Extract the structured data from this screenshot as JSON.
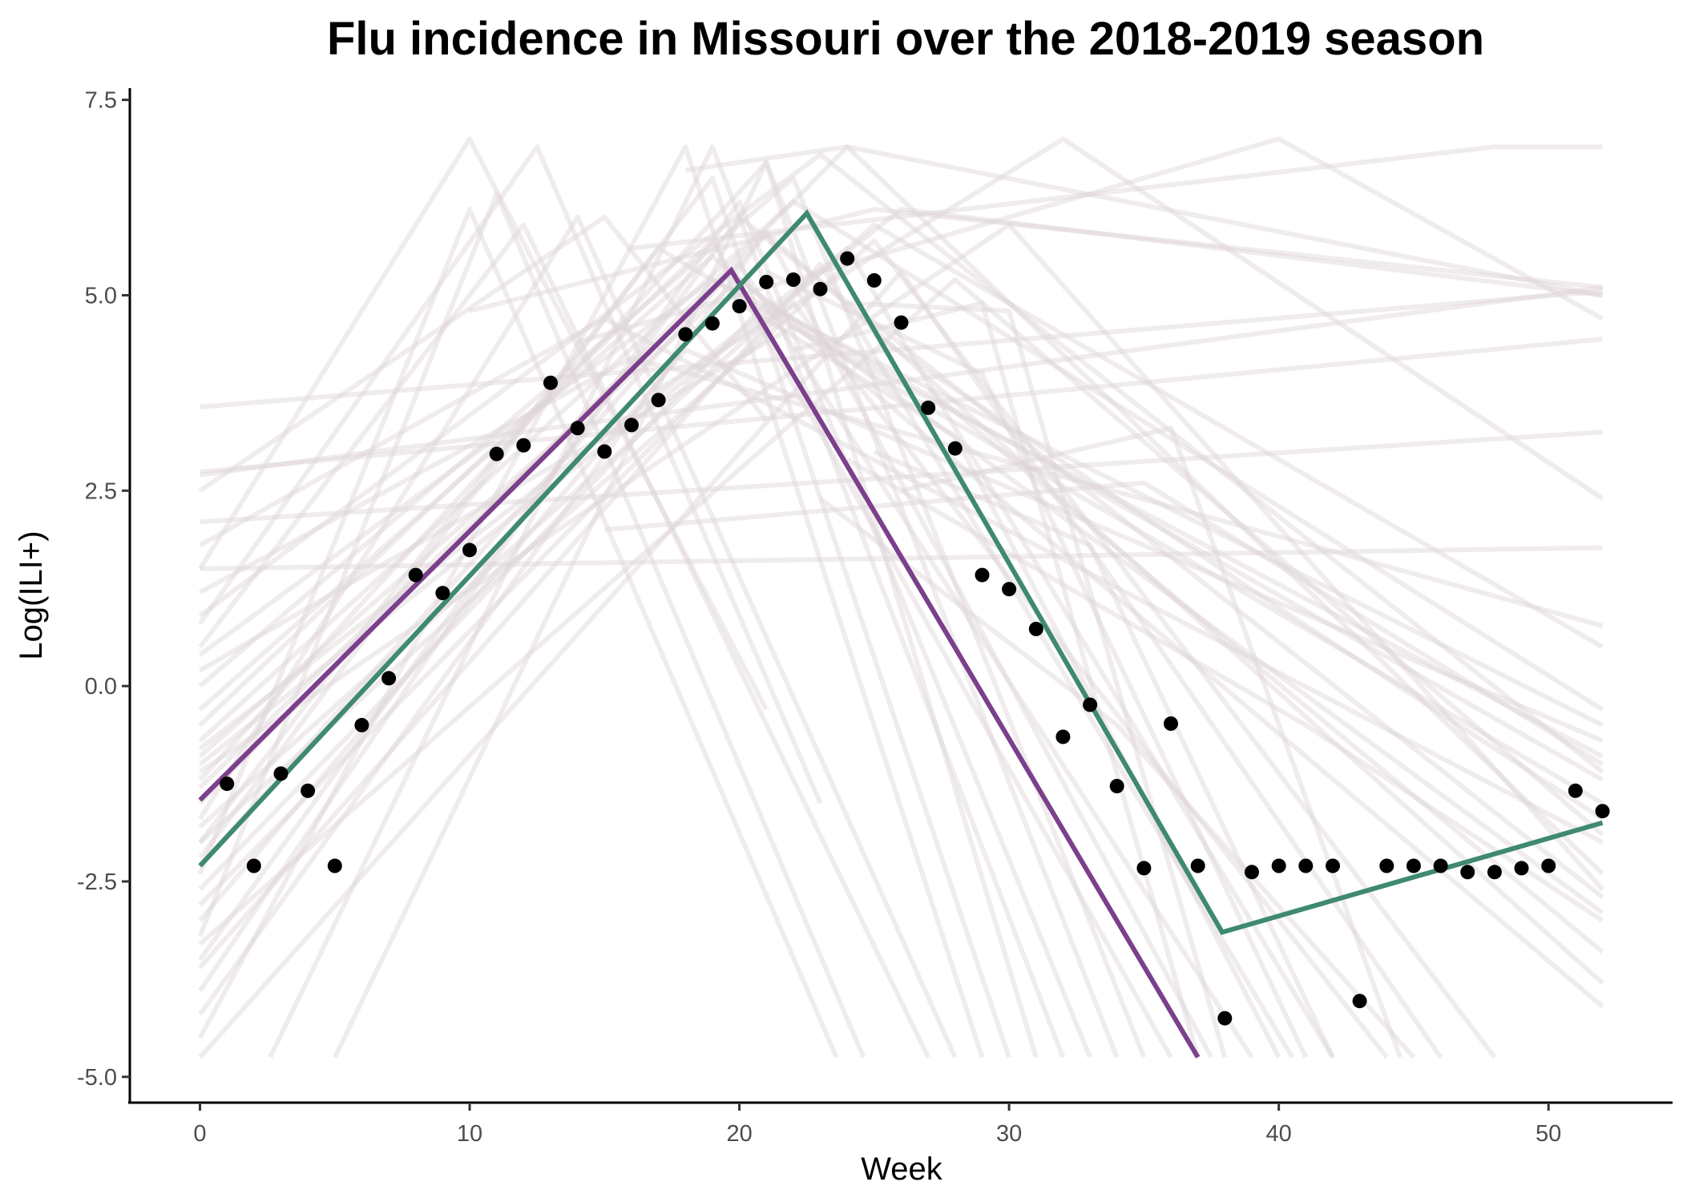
{
  "chart_data": {
    "type": "line",
    "title": "Flu incidence in Missouri over the 2018-2019 season",
    "xlabel": "Week",
    "ylabel": "Log(ILI+)",
    "xlim": [
      -2.6,
      54.6
    ],
    "ylim": [
      -5.33,
      7.65
    ],
    "x_ticks": [
      0,
      10,
      20,
      30,
      40,
      50
    ],
    "x_tick_labels": [
      "0",
      "10",
      "20",
      "30",
      "40",
      "50"
    ],
    "y_ticks": [
      -5.0,
      -2.5,
      0.0,
      2.5,
      5.0,
      7.5
    ],
    "y_tick_labels": [
      "-5.0",
      "-2.5",
      "0.0",
      "2.5",
      "5.0",
      "7.5"
    ],
    "grid": false,
    "legend": "none",
    "colors": {
      "points": "#000000",
      "purple_line": "#7b3f8c",
      "green_line": "#3f8a6e",
      "ensemble": "#ddd4d6"
    },
    "points": {
      "x": [
        1,
        2,
        3,
        4,
        5,
        6,
        7,
        8,
        9,
        10,
        11,
        12,
        13,
        14,
        15,
        16,
        17,
        18,
        19,
        20,
        21,
        22,
        23,
        24,
        25,
        26,
        27,
        28,
        29,
        30,
        31,
        32,
        33,
        34,
        35,
        36,
        37,
        38,
        39,
        40,
        41,
        42,
        43,
        44,
        45,
        46,
        47,
        48,
        49,
        50,
        51,
        52
      ],
      "y": [
        -1.25,
        -2.3,
        -1.12,
        -1.34,
        -2.3,
        -0.5,
        0.1,
        1.42,
        1.19,
        1.74,
        2.97,
        3.08,
        3.88,
        3.3,
        3.0,
        3.34,
        3.66,
        4.5,
        4.64,
        4.86,
        5.17,
        5.2,
        5.08,
        5.47,
        5.19,
        4.65,
        3.56,
        3.04,
        1.42,
        1.24,
        0.73,
        -0.65,
        -0.24,
        -1.28,
        -2.33,
        -0.48,
        -2.3,
        -4.25,
        -2.38,
        -2.3,
        -2.3,
        -2.3,
        -4.03,
        -2.3,
        -2.3,
        -2.3,
        -2.38,
        -2.38,
        -2.33,
        -2.3,
        -1.34,
        -1.6
      ]
    },
    "series": [
      {
        "x": [
          0,
          19.7,
          37
        ],
        "y": [
          -1.46,
          5.32,
          -4.75
        ]
      },
      {
        "x": [
          0,
          22.5,
          37.9,
          52
        ],
        "y": [
          -2.3,
          6.05,
          -3.15,
          -1.75
        ]
      }
    ],
    "ensemble": [
      {
        "x": [
          0,
          52
        ],
        "y": [
          3.57,
          5.05
        ]
      },
      {
        "x": [
          0,
          52
        ],
        "y": [
          2.7,
          5.1
        ]
      },
      {
        "x": [
          0,
          52
        ],
        "y": [
          2.74,
          4.44
        ]
      },
      {
        "x": [
          0,
          52
        ],
        "y": [
          2.1,
          3.25
        ]
      },
      {
        "x": [
          0,
          52
        ],
        "y": [
          1.5,
          1.77
        ]
      },
      {
        "x": [
          0,
          16,
          52
        ],
        "y": [
          1.2,
          4.2,
          0.77
        ]
      },
      {
        "x": [
          0,
          19,
          52
        ],
        "y": [
          0.4,
          5.2,
          -0.5
        ]
      },
      {
        "x": [
          0,
          22,
          52
        ],
        "y": [
          -0.7,
          6.2,
          -0.3
        ]
      },
      {
        "x": [
          0,
          17,
          52
        ],
        "y": [
          -2.2,
          5.6,
          -1.5
        ]
      },
      {
        "x": [
          0,
          20,
          52
        ],
        "y": [
          -3.5,
          6.0,
          -2.7
        ]
      },
      {
        "x": [
          0,
          21,
          52
        ],
        "y": [
          -4.2,
          5.8,
          -3.8
        ]
      },
      {
        "x": [
          0,
          18,
          52
        ],
        "y": [
          -3.0,
          4.3,
          -0.7
        ]
      },
      {
        "x": [
          0,
          23,
          52
        ],
        "y": [
          0.9,
          6.8,
          -1.1
        ]
      },
      {
        "x": [
          0,
          15,
          52
        ],
        "y": [
          1.8,
          4.7,
          -2.0
        ]
      },
      {
        "x": [
          0,
          24,
          52
        ],
        "y": [
          -1.5,
          6.9,
          -2.4
        ]
      },
      {
        "x": [
          0,
          19,
          52
        ],
        "y": [
          -0.3,
          5.5,
          -4.1
        ]
      },
      {
        "x": [
          0,
          26,
          52
        ],
        "y": [
          -1.0,
          6.1,
          5.0
        ]
      },
      {
        "x": [
          0,
          22,
          52
        ],
        "y": [
          0.2,
          4.6,
          -0.9
        ]
      },
      {
        "x": [
          0,
          21,
          52
        ],
        "y": [
          -2.6,
          4.9,
          -1.2
        ]
      },
      {
        "x": [
          0,
          25,
          52
        ],
        "y": [
          -1.8,
          5.9,
          0.5
        ]
      },
      {
        "x": [
          0,
          20,
          52
        ],
        "y": [
          -0.9,
          5.2,
          -2.9
        ]
      },
      {
        "x": [
          0,
          10,
          23.6
        ],
        "y": [
          -2.4,
          6.1,
          -4.75
        ]
      },
      {
        "x": [
          0,
          11,
          24.6
        ],
        "y": [
          -3.2,
          6.3,
          -4.75
        ]
      },
      {
        "x": [
          0,
          12,
          27
        ],
        "y": [
          0.5,
          5.9,
          -4.75
        ]
      },
      {
        "x": [
          0,
          14,
          28
        ],
        "y": [
          -1.7,
          6.0,
          -4.75
        ]
      },
      {
        "x": [
          0,
          19,
          30
        ],
        "y": [
          -2.0,
          6.5,
          -4.75
        ]
      },
      {
        "x": [
          0,
          21,
          31
        ],
        "y": [
          -1.2,
          6.7,
          -4.75
        ]
      },
      {
        "x": [
          0,
          20,
          33
        ],
        "y": [
          -3.9,
          6.2,
          -4.75
        ]
      },
      {
        "x": [
          0,
          22,
          35
        ],
        "y": [
          0.0,
          6.5,
          -4.75
        ]
      },
      {
        "x": [
          0,
          19,
          36
        ],
        "y": [
          -0.5,
          5.7,
          -4.75
        ]
      },
      {
        "x": [
          0,
          21,
          37.5
        ],
        "y": [
          -2.3,
          5.8,
          -4.75
        ]
      },
      {
        "x": [
          0,
          20,
          39
        ],
        "y": [
          -1.3,
          5.4,
          -4.75
        ]
      },
      {
        "x": [
          0,
          23,
          40.5
        ],
        "y": [
          -3.6,
          5.4,
          -4.75
        ]
      },
      {
        "x": [
          0,
          24,
          42
        ],
        "y": [
          -0.8,
          5.6,
          -4.75
        ]
      },
      {
        "x": [
          0,
          22,
          44
        ],
        "y": [
          -2.8,
          4.9,
          -4.75
        ]
      },
      {
        "x": [
          0,
          26,
          46
        ],
        "y": [
          -4.75,
          5.3,
          -4.75
        ]
      },
      {
        "x": [
          0,
          25,
          48
        ],
        "y": [
          -2.0,
          5.7,
          -4.75
        ]
      },
      {
        "x": [
          0,
          30,
          52
        ],
        "y": [
          -1.1,
          5.9,
          -2.6
        ]
      },
      {
        "x": [
          0,
          28,
          52
        ],
        "y": [
          -3.3,
          5.2,
          -1.9
        ]
      },
      {
        "x": [
          2.6,
          19,
          32
        ],
        "y": [
          -4.75,
          6.9,
          -4.75
        ]
      },
      {
        "x": [
          5,
          21,
          34
        ],
        "y": [
          -4.75,
          6.7,
          -4.75
        ]
      },
      {
        "x": [
          0,
          10,
          21
        ],
        "y": [
          1.5,
          7.0,
          -0.3
        ]
      },
      {
        "x": [
          0,
          12.5,
          23
        ],
        "y": [
          0.8,
          6.9,
          -1.5
        ]
      },
      {
        "x": [
          0,
          18,
          29
        ],
        "y": [
          -4.5,
          6.9,
          -4.75
        ]
      },
      {
        "x": [
          0,
          15,
          21
        ],
        "y": [
          2.5,
          6.0,
          3.4
        ]
      },
      {
        "x": [
          10,
          25,
          52
        ],
        "y": [
          4.8,
          6.1,
          5.1
        ]
      },
      {
        "x": [
          14,
          40,
          52
        ],
        "y": [
          4.4,
          7.0,
          4.7
        ]
      },
      {
        "x": [
          16,
          48,
          52
        ],
        "y": [
          5.6,
          6.9,
          6.9
        ]
      },
      {
        "x": [
          17,
          32,
          52
        ],
        "y": [
          3.8,
          7.0,
          2.4
        ]
      },
      {
        "x": [
          18,
          24,
          52
        ],
        "y": [
          6.6,
          6.9,
          5.0
        ]
      },
      {
        "x": [
          22,
          29,
          37
        ],
        "y": [
          4.3,
          4.9,
          -4.75
        ]
      },
      {
        "x": [
          24,
          30,
          38
        ],
        "y": [
          4.9,
          4.8,
          -4.75
        ]
      },
      {
        "x": [
          23,
          34,
          45
        ],
        "y": [
          2.4,
          -0.5,
          -4.75
        ]
      },
      {
        "x": [
          25,
          33,
          42
        ],
        "y": [
          3.0,
          1.8,
          -4.75
        ]
      },
      {
        "x": [
          26,
          36,
          44.5
        ],
        "y": [
          2.5,
          3.3,
          -4.75
        ]
      },
      {
        "x": [
          20,
          28,
          40
        ],
        "y": [
          4.9,
          3.2,
          -4.75
        ]
      },
      {
        "x": [
          21,
          29,
          41
        ],
        "y": [
          5.3,
          4.0,
          -4.75
        ]
      },
      {
        "x": [
          27,
          38,
          52
        ],
        "y": [
          3.8,
          0.6,
          -3.4
        ]
      },
      {
        "x": [
          25,
          40,
          52
        ],
        "y": [
          4.5,
          1.0,
          -1.7
        ]
      },
      {
        "x": [
          24,
          41,
          52
        ],
        "y": [
          2.9,
          -0.5,
          -3.0
        ]
      },
      {
        "x": [
          15,
          35,
          52
        ],
        "y": [
          2.0,
          2.6,
          -1.0
        ]
      }
    ]
  }
}
